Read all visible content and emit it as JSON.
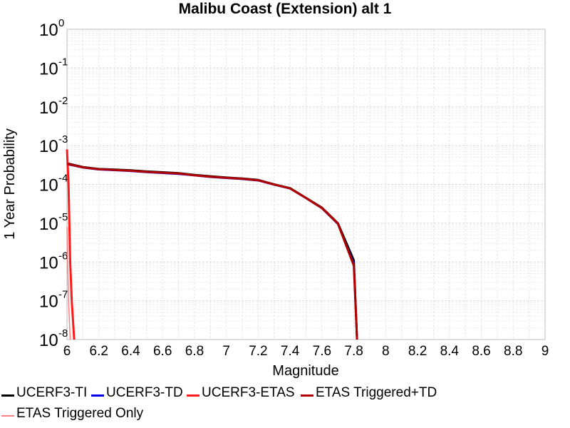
{
  "chart_data": {
    "type": "line",
    "title": "Malibu Coast (Extension) alt 1",
    "xlabel": "Magnitude",
    "ylabel": "1 Year Probability",
    "xlim": [
      6,
      9
    ],
    "ylim": [
      1e-08,
      1
    ],
    "yscale": "log",
    "grid": true,
    "legend_position": "bottom",
    "x_ticks": [
      "6",
      "6.2",
      "6.4",
      "6.6",
      "6.8",
      "7",
      "7.2",
      "7.4",
      "7.6",
      "7.8",
      "8",
      "8.2",
      "8.4",
      "8.6",
      "8.8",
      "9"
    ],
    "y_ticks": [
      {
        "base": "10",
        "exp": "0"
      },
      {
        "base": "10",
        "exp": "-1"
      },
      {
        "base": "10",
        "exp": "-2"
      },
      {
        "base": "10",
        "exp": "-3"
      },
      {
        "base": "10",
        "exp": "-4"
      },
      {
        "base": "10",
        "exp": "-5"
      },
      {
        "base": "10",
        "exp": "-6"
      },
      {
        "base": "10",
        "exp": "-7"
      },
      {
        "base": "10",
        "exp": "-8"
      }
    ],
    "series": [
      {
        "name": "UCERF3-TI",
        "color": "#000000",
        "x": [
          6.0,
          6.1,
          6.2,
          6.3,
          6.4,
          6.5,
          6.6,
          6.7,
          6.8,
          6.9,
          7.0,
          7.1,
          7.2,
          7.3,
          7.4,
          7.5,
          7.6,
          7.7,
          7.8,
          7.82
        ],
        "y": [
          0.00035,
          0.00028,
          0.00025,
          0.00024,
          0.00023,
          0.000215,
          0.000205,
          0.000195,
          0.000175,
          0.000162,
          0.00015,
          0.000142,
          0.00013,
          0.0001,
          8e-05,
          4.5e-05,
          2.5e-05,
          1e-05,
          1.1e-06,
          1e-08
        ]
      },
      {
        "name": "UCERF3-TD",
        "color": "#0000ee",
        "x": [
          6.0,
          6.1,
          6.2,
          6.3,
          6.4,
          6.5,
          6.6,
          6.7,
          6.8,
          6.9,
          7.0,
          7.1,
          7.2,
          7.3,
          7.4,
          7.5,
          7.6,
          7.7,
          7.8,
          7.82
        ],
        "y": [
          0.00033,
          0.00027,
          0.00024,
          0.00023,
          0.00022,
          0.000205,
          0.000195,
          0.000185,
          0.00017,
          0.000155,
          0.000145,
          0.000137,
          0.000125,
          9.8e-05,
          7.8e-05,
          4.4e-05,
          2.4e-05,
          9.5e-06,
          9e-07,
          1e-08
        ]
      },
      {
        "name": "UCERF3-ETAS",
        "color": "#ff1a1a",
        "x": [
          6.0,
          6.01,
          6.02,
          6.03,
          6.045
        ],
        "y": [
          0.0008,
          0.0001,
          1e-06,
          1e-07,
          1e-08
        ]
      },
      {
        "name": "ETAS Triggered+TD",
        "color": "#b30000",
        "x": [
          6.0,
          6.1,
          6.2,
          6.3,
          6.4,
          6.5,
          6.6,
          6.7,
          6.8,
          6.9,
          7.0,
          7.1,
          7.2,
          7.3,
          7.4,
          7.5,
          7.6,
          7.7,
          7.8,
          7.82
        ],
        "y": [
          0.00034,
          0.000275,
          0.000245,
          0.000235,
          0.000225,
          0.00021,
          0.0002,
          0.00019,
          0.000172,
          0.000158,
          0.000148,
          0.00014,
          0.000128,
          9.9e-05,
          7.9e-05,
          4.45e-05,
          2.45e-05,
          9.8e-06,
          8e-07,
          1e-08
        ]
      },
      {
        "name": "ETAS Triggered Only",
        "color": "#ff8080",
        "x": [
          6.0,
          6.01,
          6.02
        ],
        "y": [
          8e-06,
          1e-07,
          1e-08
        ]
      }
    ]
  }
}
